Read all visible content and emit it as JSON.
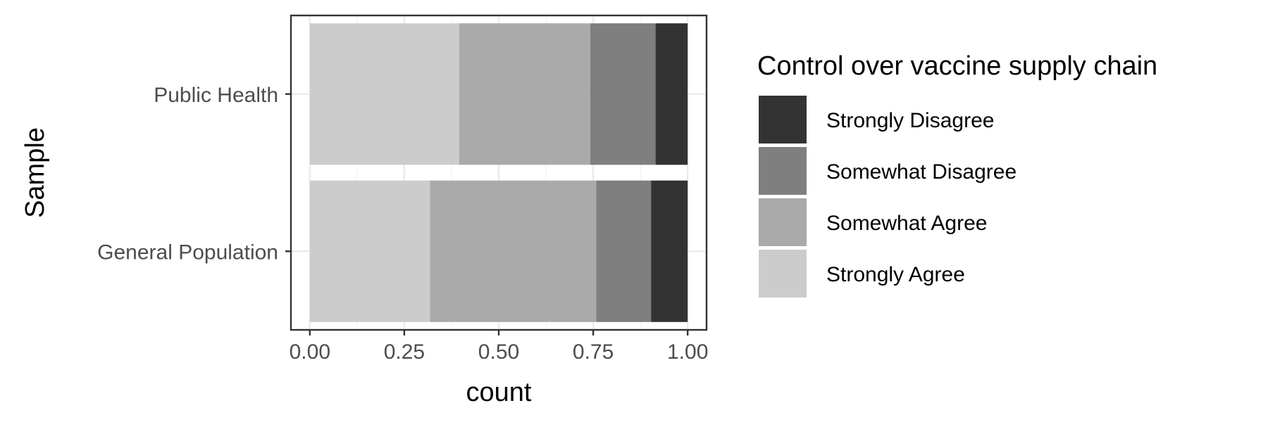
{
  "chart_data": {
    "type": "bar",
    "orientation": "horizontal",
    "stacked": true,
    "categories": [
      "Public Health",
      "General Population"
    ],
    "series": [
      {
        "name": "Strongly Agree",
        "color": "#cccccc",
        "values": [
          0.395,
          0.318
        ]
      },
      {
        "name": "Somewhat Agree",
        "color": "#aaaaaa",
        "values": [
          0.347,
          0.44
        ]
      },
      {
        "name": "Somewhat Disagree",
        "color": "#7f7f7f",
        "values": [
          0.173,
          0.145
        ]
      },
      {
        "name": "Strongly Disagree",
        "color": "#333333",
        "values": [
          0.085,
          0.097
        ]
      }
    ],
    "xlabel": "count",
    "ylabel": "Sample",
    "xlim": [
      -0.05,
      1.05
    ],
    "xticks": [
      "0.00",
      "0.25",
      "0.50",
      "0.75",
      "1.00"
    ],
    "grid": true,
    "legend": {
      "title": "Control over vaccine supply chain",
      "position": "right",
      "entries": [
        "Strongly Disagree",
        "Somewhat Disagree",
        "Somewhat Agree",
        "Strongly Agree"
      ]
    }
  }
}
